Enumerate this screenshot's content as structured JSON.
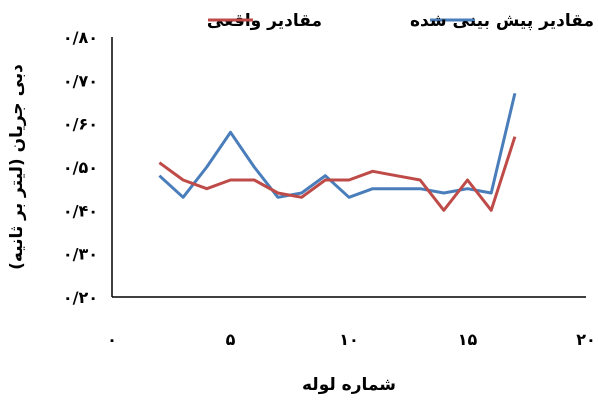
{
  "chart_data": {
    "type": "line",
    "xlabel": "شماره لوله",
    "ylabel": "دبی جریان (لیتر بر ثانیه)",
    "xlim": [
      0,
      20
    ],
    "ylim": [
      0.2,
      0.8
    ],
    "x_ticks": [
      0,
      5,
      10,
      15,
      20
    ],
    "x_tick_labels": [
      "۰",
      "۵",
      "۱۰",
      "۱۵",
      "۲۰"
    ],
    "y_ticks": [
      0.2,
      0.3,
      0.4,
      0.5,
      0.6,
      0.7,
      0.8
    ],
    "y_tick_labels": [
      "۰/۲۰",
      "۰/۳۰",
      "۰/۴۰",
      "۰/۵۰",
      "۰/۶۰",
      "۰/۷۰",
      "۰/۸۰"
    ],
    "grid": false,
    "legend_position": "top",
    "x": [
      2,
      3,
      4,
      5,
      6,
      7,
      8,
      9,
      10,
      11,
      12,
      13,
      14,
      15,
      16,
      17
    ],
    "series": [
      {
        "name": "مقادیر واقعی",
        "color": "#4a7ebb",
        "values": [
          0.48,
          0.43,
          0.5,
          0.58,
          0.5,
          0.43,
          0.44,
          0.48,
          0.43,
          0.45,
          0.45,
          0.45,
          0.44,
          0.45,
          0.44,
          0.67
        ]
      },
      {
        "name": "مقادیر پیش بینی شده",
        "color": "#be4b48",
        "values": [
          0.51,
          0.47,
          0.45,
          0.47,
          0.47,
          0.44,
          0.43,
          0.47,
          0.47,
          0.49,
          0.48,
          0.47,
          0.4,
          0.47,
          0.4,
          0.57
        ]
      }
    ]
  }
}
